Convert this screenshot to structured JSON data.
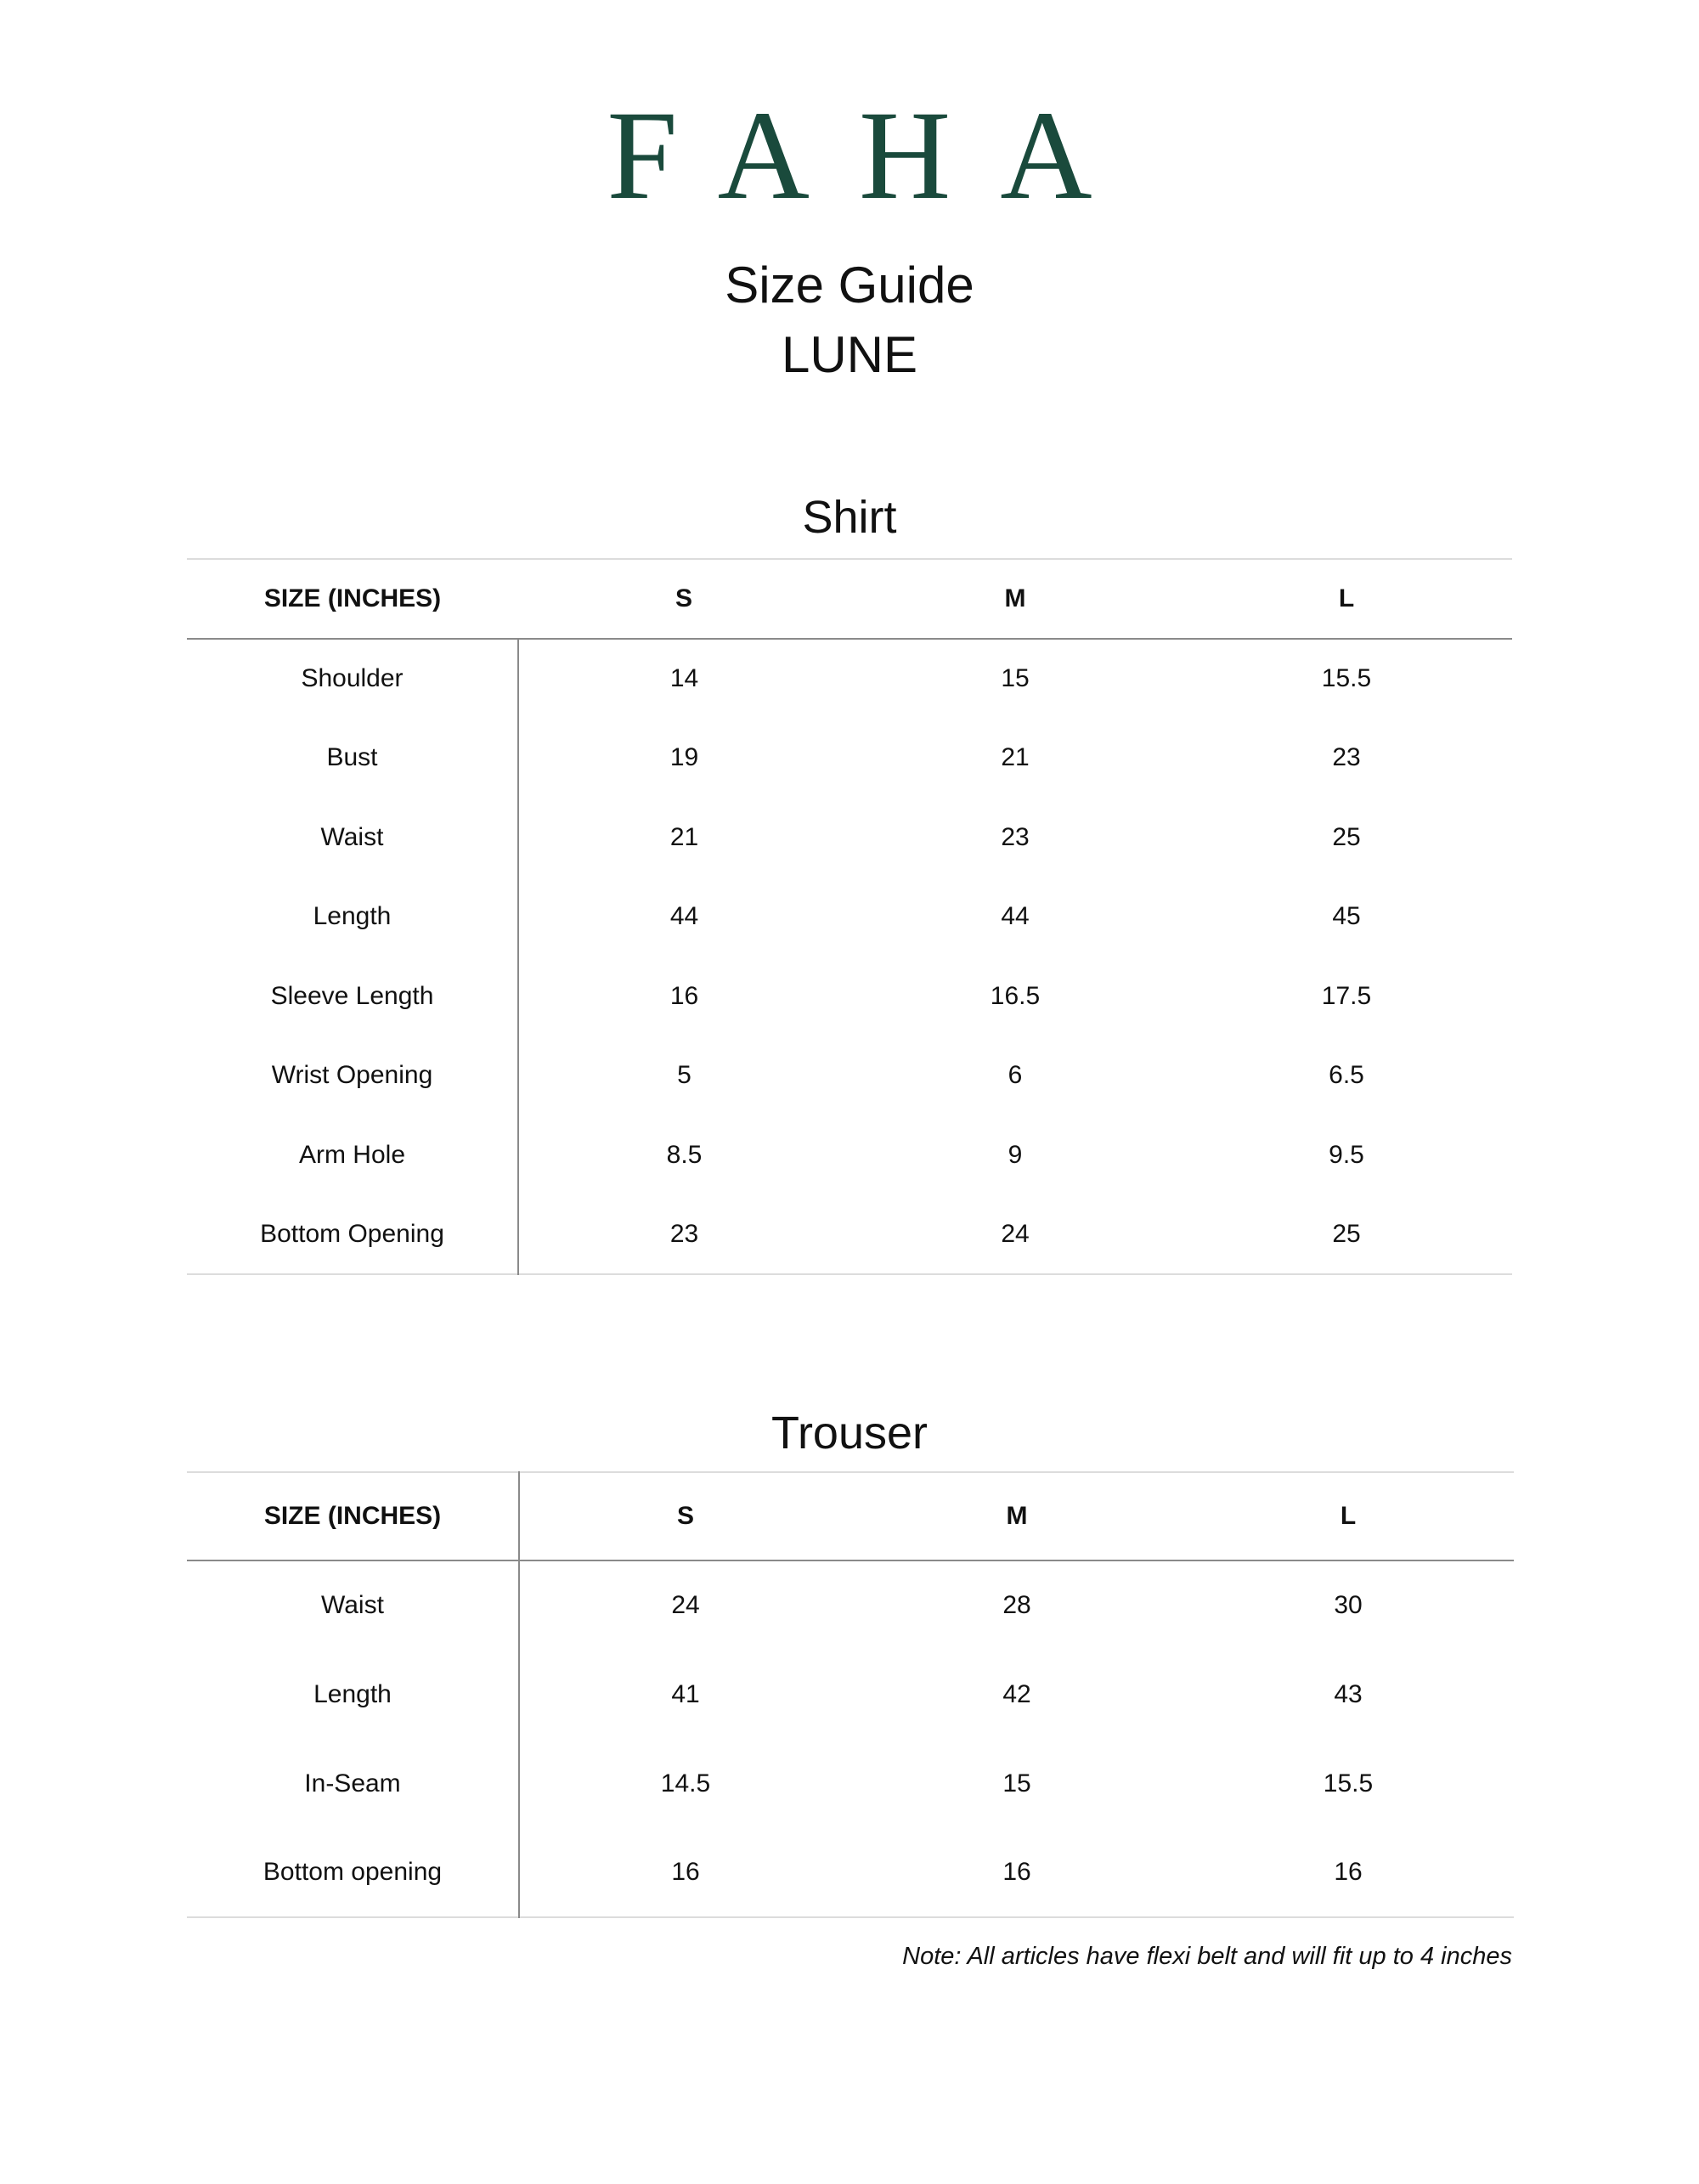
{
  "brand": {
    "logo_text": "FAHA",
    "color": "#1a4a3c"
  },
  "header": {
    "title": "Size Guide",
    "subtitle": "LUNE"
  },
  "shirt": {
    "title": "Shirt",
    "columns": [
      "SIZE (INCHES)",
      "S",
      "M",
      "L"
    ],
    "rows": [
      [
        "Shoulder",
        "14",
        "15",
        "15.5"
      ],
      [
        "Bust",
        "19",
        "21",
        "23"
      ],
      [
        "Waist",
        "21",
        "23",
        "25"
      ],
      [
        "Length",
        "44",
        "44",
        "45"
      ],
      [
        "Sleeve Length",
        "16",
        "16.5",
        "17.5"
      ],
      [
        "Wrist Opening",
        "5",
        "6",
        "6.5"
      ],
      [
        "Arm Hole",
        "8.5",
        "9",
        "9.5"
      ],
      [
        "Bottom Opening",
        "23",
        "24",
        "25"
      ]
    ]
  },
  "trouser": {
    "title": "Trouser",
    "columns": [
      "SIZE (INCHES)",
      "S",
      "M",
      "L"
    ],
    "rows": [
      [
        "Waist",
        "24",
        "28",
        "30"
      ],
      [
        "Length",
        "41",
        "42",
        "43"
      ],
      [
        "In-Seam",
        "14.5",
        "15",
        "15.5"
      ],
      [
        "Bottom opening",
        "16",
        "16",
        "16"
      ]
    ]
  },
  "note": "Note: All articles have flexi belt and will fit up to 4 inches"
}
